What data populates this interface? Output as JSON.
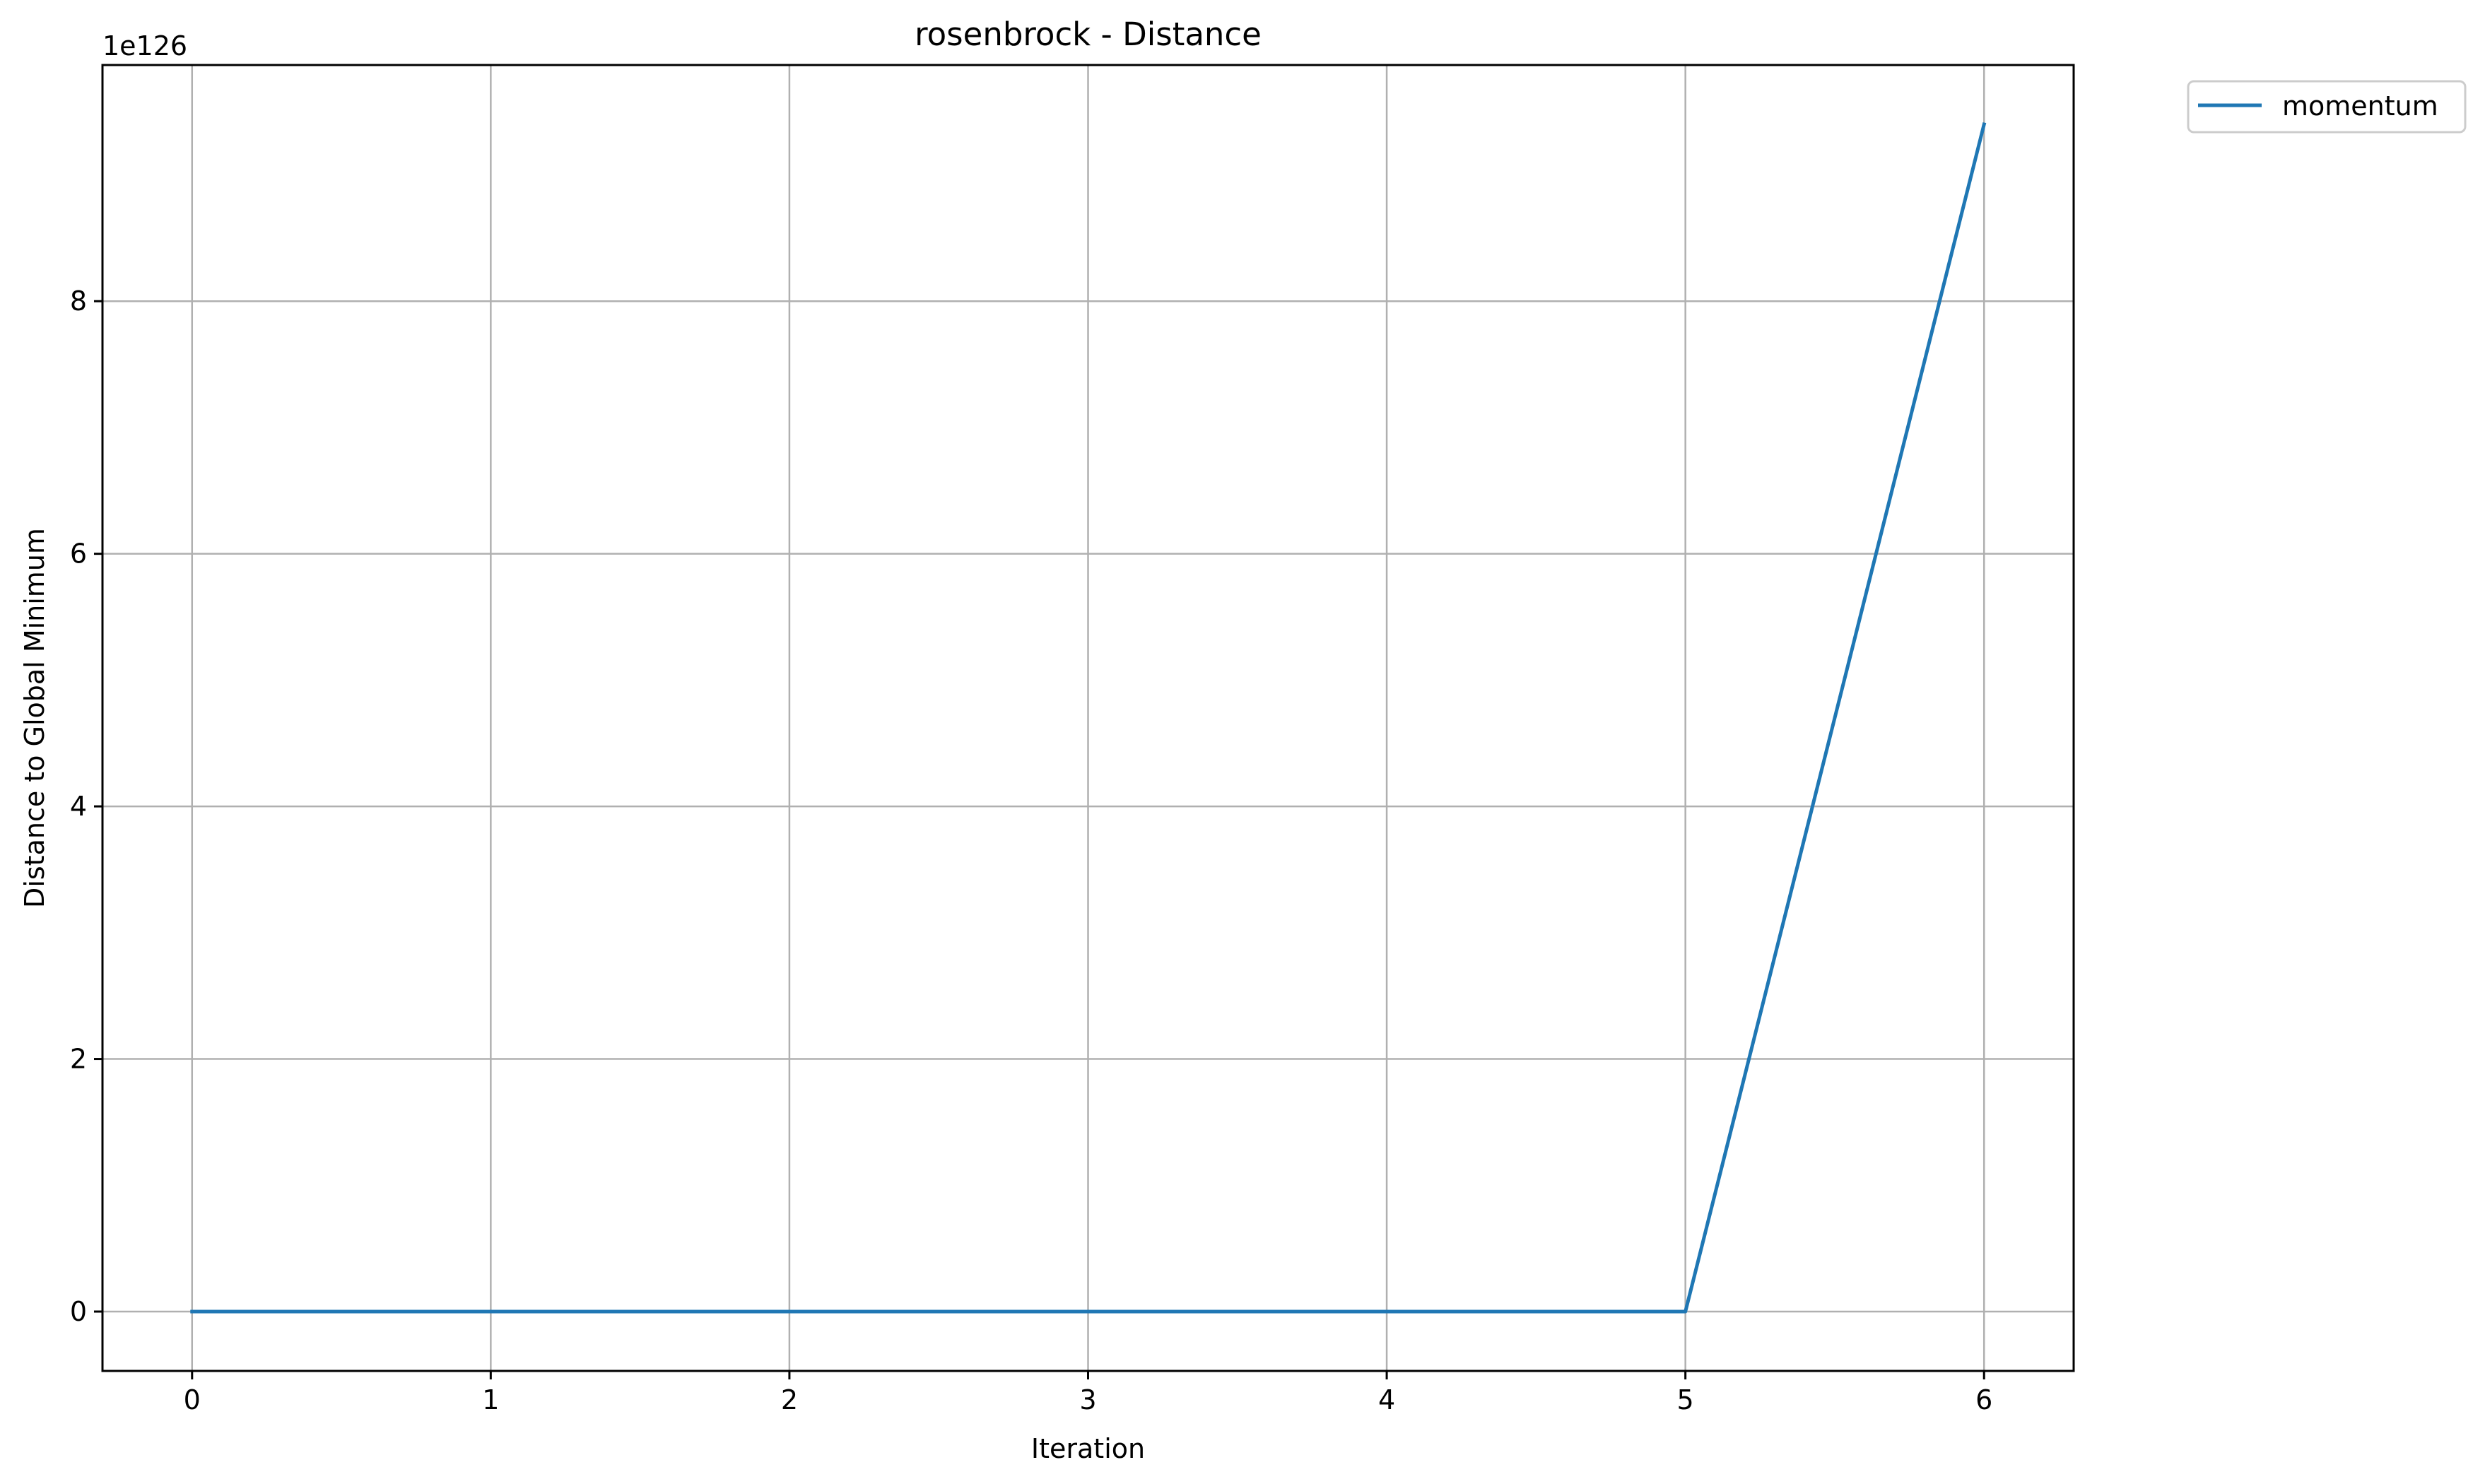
{
  "chart_data": {
    "type": "line",
    "title": "rosenbrock - Distance",
    "xlabel": "Iteration",
    "ylabel": "Distance to Global Minimum",
    "y_offset_text": "1e126",
    "xlim": [
      -0.3,
      6.3
    ],
    "ylim": [
      -0.47,
      9.87
    ],
    "y_scale_factor": "1e126",
    "xticks": [
      0,
      1,
      2,
      3,
      4,
      5,
      6
    ],
    "xtick_labels": [
      "0",
      "1",
      "2",
      "3",
      "4",
      "5",
      "6"
    ],
    "yticks": [
      0,
      2,
      4,
      6,
      8
    ],
    "ytick_labels": [
      "0",
      "2",
      "4",
      "6",
      "8"
    ],
    "grid": true,
    "legend_position": "outside-top-right",
    "series": [
      {
        "name": "momentum",
        "color": "#1f77b4",
        "x": [
          0,
          1,
          2,
          3,
          4,
          5,
          6
        ],
        "y": [
          0,
          0,
          0,
          0,
          0,
          0,
          9.4
        ]
      }
    ]
  }
}
